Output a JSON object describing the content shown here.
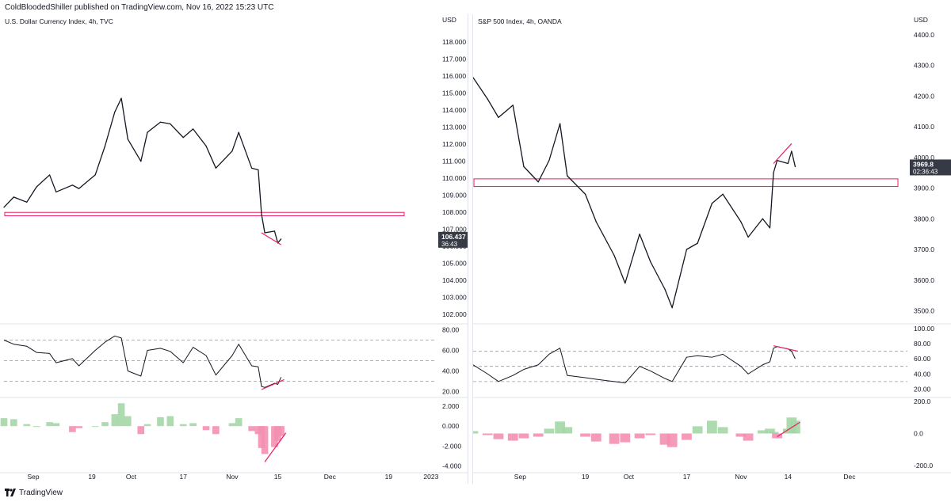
{
  "header": {
    "publisher": "ColdBloodedShiller published on TradingView.com, Nov 16, 2022 15:23 UTC"
  },
  "footer": {
    "brand": "TradingView"
  },
  "chart_data": [
    {
      "type": "line",
      "title": "U.S. Dollar Currency Index, 4h, TVC",
      "currency": "USD",
      "price_ticks": [
        "118.000",
        "117.000",
        "116.000",
        "115.000",
        "114.000",
        "113.000",
        "112.000",
        "111.000",
        "110.000",
        "109.000",
        "108.000",
        "107.000",
        "106.000",
        "105.000",
        "104.000",
        "103.000",
        "102.000"
      ],
      "ylim": [
        101.5,
        118.8
      ],
      "last_price": "106.437",
      "countdown": "36:43",
      "x_ticks": [
        "Sep",
        "19",
        "Oct",
        "17",
        "Nov",
        "15",
        "Dec",
        "19",
        "2023"
      ],
      "series": [
        {
          "x": [
            "Aug 23",
            "Aug 26",
            "Aug 30",
            "Sep 2",
            "Sep 6",
            "Sep 8",
            "Sep 13",
            "Sep 15",
            "Sep 20",
            "Sep 23",
            "Sep 26",
            "Sep 28",
            "Sep 30",
            "Oct 4",
            "Oct 6",
            "Oct 10",
            "Oct 13",
            "Oct 17",
            "Oct 20",
            "Oct 24",
            "Oct 27",
            "Nov 1",
            "Nov 3",
            "Nov 7",
            "Nov 9",
            "Nov 10",
            "Nov 11",
            "Nov 14",
            "Nov 15",
            "Nov 16"
          ],
          "y": [
            108.3,
            108.9,
            108.6,
            109.5,
            110.2,
            109.2,
            109.6,
            109.4,
            110.2,
            111.9,
            113.9,
            114.7,
            112.3,
            111.0,
            112.7,
            113.3,
            113.2,
            112.4,
            112.9,
            111.9,
            110.6,
            111.6,
            112.7,
            110.6,
            110.5,
            107.9,
            106.8,
            106.9,
            106.2,
            106.437
          ]
        }
      ],
      "annotations": {
        "support_zone": [
          107.8,
          108.0
        ],
        "divergence_line": [
          {
            "x": "Nov 10",
            "y": 106.8
          },
          {
            "x": "Nov 16",
            "y": 106.1
          }
        ]
      },
      "rsi": {
        "ticks": [
          "80.00",
          "60.00",
          "40.00",
          "20.00"
        ],
        "ylim": [
          15,
          85
        ],
        "levels": [
          70,
          50,
          30
        ],
        "values": [
          70,
          66,
          64,
          58,
          57,
          48,
          52,
          45,
          60,
          68,
          74,
          72,
          40,
          35,
          60,
          62,
          59,
          48,
          63,
          55,
          36,
          55,
          66,
          45,
          44,
          25,
          24,
          28,
          27,
          34
        ]
      },
      "histogram": {
        "ticks": [
          "2.000",
          "0.000",
          "-2.000",
          "-4.000"
        ],
        "ylim": [
          -4.6,
          2.8
        ],
        "values": [
          0.8,
          0.7,
          0.2,
          0.0,
          0.4,
          0.3,
          -0.6,
          -0.2,
          0.0,
          0.4,
          1.2,
          2.3,
          1.0,
          -0.8,
          0.2,
          0.9,
          1.0,
          0.2,
          0.3,
          -0.4,
          -0.8,
          0.3,
          0.8,
          -0.5,
          -0.8,
          -2.2,
          -2.8,
          -2.1,
          -1.5,
          -1.0
        ]
      }
    },
    {
      "type": "line",
      "title": "S&P 500 Index, 4h, OANDA",
      "currency": "USD",
      "price_ticks": [
        "4400.0",
        "4300.0",
        "4200.0",
        "4100.0",
        "4000.0",
        "3900.0",
        "3800.0",
        "3700.0",
        "3600.0",
        "3500.0"
      ],
      "ylim": [
        3460,
        4420
      ],
      "last_price": "3969.8",
      "countdown": "02:36:43",
      "x_ticks": [
        "Sep",
        "19",
        "Oct",
        "17",
        "Nov",
        "14",
        "Dec"
      ],
      "series": [
        {
          "x": [
            "Aug 19",
            "Aug 23",
            "Aug 26",
            "Aug 30",
            "Sep 2",
            "Sep 6",
            "Sep 9",
            "Sep 12",
            "Sep 14",
            "Sep 19",
            "Sep 22",
            "Sep 27",
            "Sep 30",
            "Oct 4",
            "Oct 7",
            "Oct 11",
            "Oct 13",
            "Oct 17",
            "Oct 20",
            "Oct 24",
            "Oct 27",
            "Nov 1",
            "Nov 3",
            "Nov 7",
            "Nov 9",
            "Nov 10",
            "Nov 11",
            "Nov 14",
            "Nov 15",
            "Nov 16"
          ],
          "y": [
            4260,
            4190,
            4130,
            4170,
            3970,
            3920,
            3990,
            4110,
            3940,
            3880,
            3790,
            3680,
            3590,
            3750,
            3660,
            3570,
            3510,
            3700,
            3720,
            3850,
            3880,
            3790,
            3740,
            3800,
            3770,
            3950,
            3990,
            3980,
            4020,
            3969.8
          ]
        }
      ],
      "annotations": {
        "resistance_zone": [
          3905,
          3930
        ],
        "divergence_line": [
          {
            "x": "Nov 10",
            "y": 3980
          },
          {
            "x": "Nov 15",
            "y": 4045
          }
        ]
      },
      "rsi": {
        "ticks": [
          "100.00",
          "80.00",
          "60.00",
          "40.00",
          "20.00"
        ],
        "ylim": [
          10,
          105
        ],
        "levels": [
          70,
          50,
          30
        ],
        "values": [
          52,
          40,
          30,
          38,
          46,
          52,
          66,
          74,
          38,
          35,
          33,
          30,
          28,
          50,
          44,
          34,
          30,
          62,
          64,
          62,
          66,
          50,
          40,
          52,
          56,
          74,
          76,
          73,
          70,
          60
        ]
      },
      "histogram": {
        "ticks": [
          "200.0",
          "0.0",
          "-200.0"
        ],
        "ylim": [
          -240,
          220
        ],
        "values": [
          15,
          -10,
          -35,
          -45,
          -30,
          -20,
          30,
          75,
          40,
          -20,
          -50,
          -65,
          -55,
          -30,
          -10,
          -70,
          -85,
          -40,
          45,
          80,
          40,
          -20,
          -45,
          20,
          30,
          10,
          -30,
          30,
          100,
          80
        ]
      }
    }
  ]
}
